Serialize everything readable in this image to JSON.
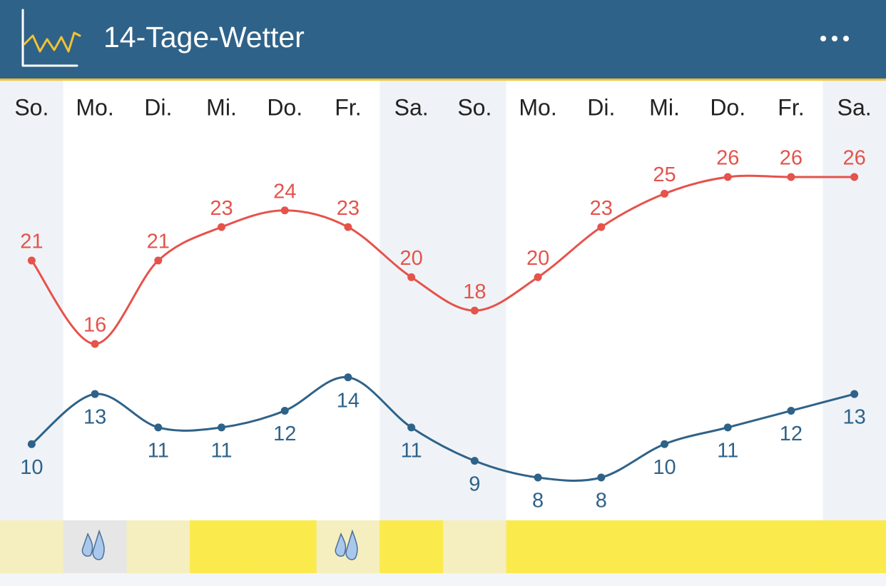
{
  "header": {
    "title": "14-Tage-Wetter"
  },
  "chart_data": {
    "type": "line",
    "categories": [
      "So.",
      "Mo.",
      "Di.",
      "Mi.",
      "Do.",
      "Fr.",
      "Sa.",
      "So.",
      "Mo.",
      "Di.",
      "Mi.",
      "Do.",
      "Fr.",
      "Sa."
    ],
    "series": [
      {
        "color": "#e5534b",
        "values": [
          21,
          16,
          21,
          23,
          24,
          23,
          20,
          18,
          20,
          23,
          25,
          26,
          26,
          26
        ]
      },
      {
        "color": "#2f6289",
        "values": [
          10,
          13,
          11,
          11,
          12,
          14,
          11,
          9,
          8,
          8,
          10,
          11,
          12,
          13
        ]
      }
    ]
  }
}
